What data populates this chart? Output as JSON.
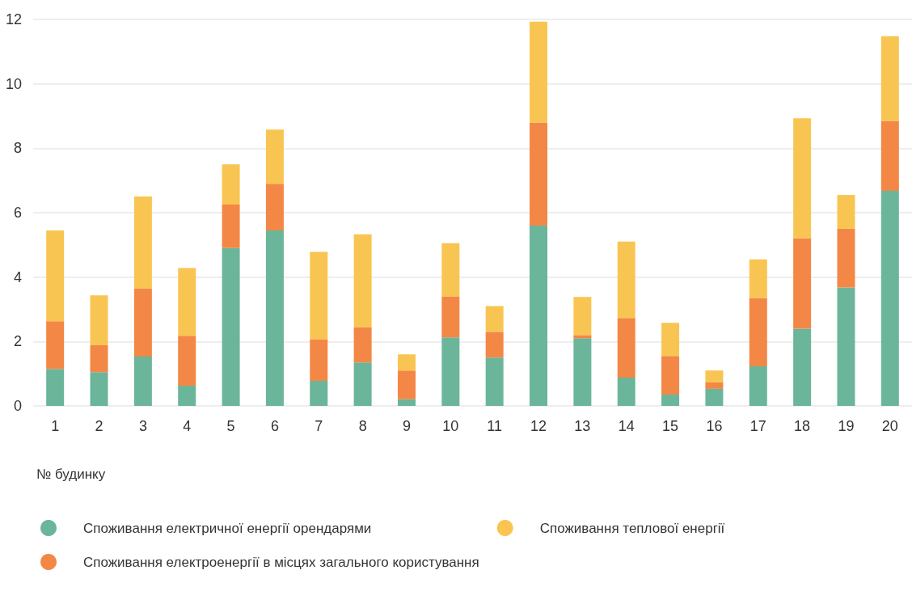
{
  "chart_data": {
    "type": "bar",
    "stacked": true,
    "xlabel": "№ будинку",
    "categories": [
      "1",
      "2",
      "3",
      "4",
      "5",
      "6",
      "7",
      "8",
      "9",
      "10",
      "11",
      "12",
      "13",
      "14",
      "15",
      "16",
      "17",
      "18",
      "19",
      "20"
    ],
    "series": [
      {
        "name": "Споживання електричної енергії орендарями",
        "color": "#6bb59a",
        "values": [
          1.15,
          1.05,
          1.53,
          0.63,
          4.9,
          5.45,
          0.78,
          1.35,
          0.21,
          2.13,
          1.5,
          5.6,
          2.1,
          0.88,
          0.35,
          0.53,
          1.23,
          2.4,
          3.68,
          6.68
        ]
      },
      {
        "name": "Споживання електроенергії в місцях загального користування",
        "color": "#f38745",
        "values": [
          1.48,
          0.83,
          2.12,
          1.55,
          1.35,
          1.45,
          1.29,
          1.1,
          0.89,
          1.27,
          0.8,
          3.2,
          0.1,
          1.85,
          1.2,
          0.2,
          2.12,
          2.8,
          1.82,
          2.17
        ]
      },
      {
        "name": "Споживання теплової енергії",
        "color": "#f9c552",
        "values": [
          2.82,
          1.55,
          2.85,
          2.1,
          1.25,
          1.68,
          2.71,
          2.88,
          0.5,
          1.65,
          0.8,
          3.13,
          1.18,
          2.37,
          1.03,
          0.37,
          1.2,
          3.73,
          1.05,
          2.63
        ]
      }
    ],
    "ylim": [
      0,
      12
    ],
    "yticks": [
      0,
      2,
      4,
      6,
      8,
      10,
      12
    ],
    "grid": "y",
    "legend": "bottom left"
  }
}
